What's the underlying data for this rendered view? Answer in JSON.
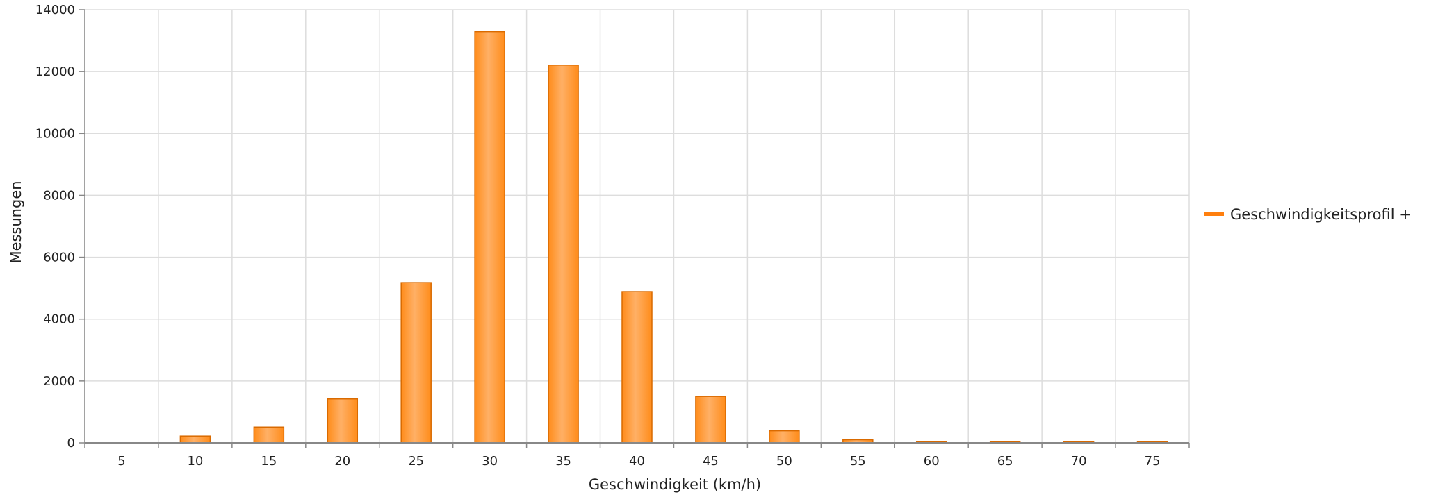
{
  "chart_data": {
    "type": "bar",
    "title": "",
    "xlabel": "Geschwindigkeit (km/h)",
    "ylabel": "Messungen",
    "categories": [
      "5",
      "10",
      "15",
      "20",
      "25",
      "30",
      "35",
      "40",
      "45",
      "50",
      "55",
      "60",
      "65",
      "70",
      "75"
    ],
    "series": [
      {
        "name": "Geschwindigkeitsprofil +",
        "values": [
          0,
          220,
          510,
          1420,
          5180,
          13290,
          12210,
          4890,
          1500,
          390,
          100,
          15,
          8,
          5,
          5
        ]
      }
    ],
    "ylim": [
      0,
      14000
    ],
    "yticks": [
      "0",
      "2000",
      "4000",
      "6000",
      "8000",
      "10000",
      "12000",
      "14000"
    ],
    "grid": true,
    "legend_position": "right",
    "colors": {
      "bar_fill": "#ff8c1a",
      "bar_highlight": "#ffb066",
      "bar_edge": "#d96a00",
      "legend_swatch": "#ff7f0e",
      "grid": "#dddddd",
      "axis": "#888888"
    }
  }
}
